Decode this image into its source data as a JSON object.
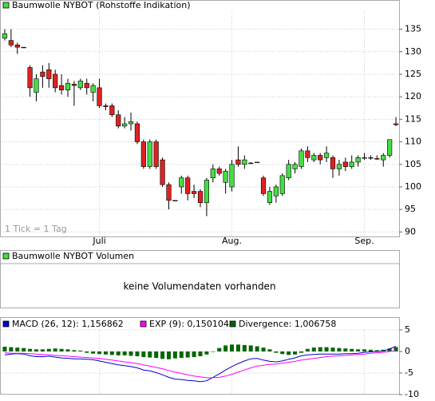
{
  "chart_data": [
    {
      "type": "candlestick",
      "title": "Baumwolle NYBOT (Rohstoffe Indikation)",
      "annotation": "1 Tick = 1 Tag",
      "legend_color": "#44dd44",
      "up_color": "#44dd44",
      "down_color": "#dd2222",
      "categories": [
        null,
        null,
        null,
        null,
        null,
        null,
        null,
        null,
        null,
        null,
        null,
        null,
        null,
        null,
        null,
        "Juli",
        null,
        null,
        null,
        null,
        null,
        null,
        null,
        null,
        null,
        null,
        null,
        null,
        null,
        null,
        null,
        null,
        null,
        null,
        null,
        null,
        "Aug.",
        null,
        null,
        null,
        null,
        null,
        null,
        null,
        null,
        null,
        null,
        null,
        null,
        null,
        null,
        null,
        null,
        null,
        null,
        null,
        null,
        "Sep.",
        null,
        null,
        null,
        null,
        null
      ],
      "open": [
        133,
        132.5,
        131.5,
        131,
        126.5,
        121,
        125.5,
        126,
        125,
        122.5,
        121.5,
        122.8,
        122,
        123,
        121,
        122,
        118,
        118,
        116,
        113.5,
        114,
        114,
        110,
        104.5,
        110,
        106,
        100.5,
        97,
        100,
        102,
        99,
        99,
        96.5,
        102,
        104,
        101,
        100,
        106,
        105,
        105.3,
        105.5,
        102,
        96.5,
        98,
        98.5,
        102,
        104,
        104.5,
        108,
        106,
        107,
        106.5,
        106.5,
        104,
        105.5,
        104.5,
        105.5,
        106.5,
        106.5,
        106.3,
        106,
        107,
        114
      ],
      "high": [
        135,
        135,
        132,
        131,
        127,
        125,
        127,
        127.5,
        126,
        125,
        124,
        123.5,
        124,
        124,
        123,
        124,
        118.5,
        118.5,
        117,
        115.5,
        116.5,
        114.5,
        110.5,
        110.5,
        110.5,
        106.5,
        101,
        97,
        102.5,
        102.5,
        100.5,
        99.5,
        102,
        105,
        104.5,
        104,
        106,
        109,
        107,
        105.5,
        105.5,
        102.5,
        100,
        100.5,
        103,
        106,
        105.5,
        108.5,
        109,
        107.5,
        107.5,
        109,
        107,
        106,
        106.5,
        107,
        107,
        107.5,
        107,
        107,
        107.5,
        110.5,
        115.5
      ],
      "low": [
        132.5,
        131,
        129.5,
        130.9,
        120,
        119,
        122,
        122,
        121,
        120.5,
        120,
        118,
        121.5,
        120.5,
        119,
        117.5,
        117,
        115.5,
        113,
        113,
        112.5,
        109.5,
        104,
        104,
        104,
        100,
        95,
        96.9,
        98.5,
        97,
        97.5,
        95.5,
        93.5,
        101,
        102.5,
        98.5,
        99,
        104.5,
        104,
        105.2,
        105.5,
        98,
        96,
        96.5,
        98,
        101.5,
        103,
        104,
        105.5,
        105.5,
        105,
        105.5,
        102,
        102.5,
        103.5,
        104,
        104.5,
        106,
        106,
        106,
        104.5,
        106.5,
        113.5
      ],
      "close": [
        134,
        131.5,
        131,
        130.9,
        122,
        124,
        124.5,
        124,
        122,
        121.5,
        123,
        122.5,
        123.5,
        122,
        122.5,
        118,
        117.8,
        116,
        113.5,
        114,
        114.5,
        110,
        104.5,
        110,
        104.5,
        100.5,
        97,
        96.9,
        102,
        98.5,
        98.5,
        96.5,
        101.5,
        104,
        103,
        103.5,
        105,
        105,
        106,
        105.2,
        105.5,
        98.5,
        99,
        100,
        102.5,
        105,
        105,
        108,
        106.5,
        107,
        106,
        107.5,
        104,
        105,
        104.5,
        105.5,
        106.5,
        106.5,
        106.5,
        106.2,
        107,
        110.5,
        113.8
      ],
      "ylim": [
        89,
        139
      ],
      "yticks": [
        90,
        95,
        100,
        105,
        110,
        115,
        120,
        125,
        130,
        135
      ],
      "grid": true
    },
    {
      "type": "empty",
      "title": "Baumwolle NYBOT Volumen",
      "legend_color": "#44dd44",
      "message": "keine Volumendaten vorhanden"
    },
    {
      "type": "line",
      "ylim": [
        -10,
        5
      ],
      "yticks": [
        -10,
        -5,
        0,
        5
      ],
      "grid": true,
      "series": [
        {
          "name": "MACD (26, 12): 1,156862",
          "color": "#0000cc",
          "type": "line",
          "values": [
            -0.8,
            -0.6,
            -0.5,
            -0.6,
            -1.0,
            -1.2,
            -1.2,
            -1.1,
            -1.3,
            -1.5,
            -1.6,
            -1.7,
            -1.7,
            -1.8,
            -1.9,
            -2.2,
            -2.5,
            -2.8,
            -3.1,
            -3.3,
            -3.5,
            -3.8,
            -4.3,
            -4.5,
            -4.9,
            -5.4,
            -6.0,
            -6.4,
            -6.5,
            -6.7,
            -6.8,
            -7.0,
            -6.8,
            -6.0,
            -5.2,
            -4.3,
            -3.5,
            -2.8,
            -2.2,
            -1.7,
            -1.6,
            -2.0,
            -2.3,
            -2.4,
            -2.2,
            -1.8,
            -1.5,
            -1.0,
            -0.8,
            -0.7,
            -0.6,
            -0.6,
            -0.6,
            -0.6,
            -0.5,
            -0.5,
            -0.4,
            -0.2,
            -0.1,
            0.0,
            0.1,
            0.6,
            1.2
          ]
        },
        {
          "name": "EXP (9): 0,150104",
          "color": "#ff00ff",
          "type": "line",
          "values": [
            -0.3,
            -0.4,
            -0.4,
            -0.4,
            -0.5,
            -0.6,
            -0.7,
            -0.8,
            -0.9,
            -1.0,
            -1.1,
            -1.2,
            -1.3,
            -1.4,
            -1.5,
            -1.6,
            -1.8,
            -2.0,
            -2.2,
            -2.4,
            -2.6,
            -2.8,
            -3.1,
            -3.4,
            -3.7,
            -4.0,
            -4.4,
            -4.8,
            -5.1,
            -5.4,
            -5.7,
            -5.9,
            -6.1,
            -6.1,
            -6.0,
            -5.7,
            -5.3,
            -4.8,
            -4.3,
            -3.8,
            -3.4,
            -3.2,
            -3.0,
            -2.9,
            -2.7,
            -2.5,
            -2.3,
            -2.0,
            -1.8,
            -1.6,
            -1.4,
            -1.2,
            -1.1,
            -1.0,
            -0.9,
            -0.8,
            -0.7,
            -0.6,
            -0.4,
            -0.3,
            -0.2,
            0.0,
            0.2
          ]
        },
        {
          "name": "Divergence: 1,006758",
          "color": "#006600",
          "type": "bar",
          "values": [
            1.1,
            1.0,
            0.9,
            0.8,
            0.6,
            0.5,
            0.5,
            0.6,
            0.7,
            0.6,
            0.5,
            0.3,
            0.2,
            -0.3,
            -0.5,
            -0.6,
            -0.7,
            -0.8,
            -0.9,
            -0.9,
            -1.0,
            -1.1,
            -1.3,
            -1.4,
            -1.5,
            -1.7,
            -1.8,
            -1.6,
            -1.5,
            -1.4,
            -1.3,
            -1.1,
            -0.7,
            -0.1,
            0.8,
            1.4,
            1.6,
            1.6,
            1.5,
            1.4,
            1.2,
            0.9,
            0.5,
            -0.3,
            -0.6,
            -0.8,
            -0.7,
            -0.3,
            0.6,
            0.9,
            1.0,
            1.0,
            0.9,
            0.8,
            0.7,
            0.6,
            0.5,
            0.5,
            0.4,
            0.3,
            0.4,
            0.7,
            1.0
          ]
        }
      ]
    }
  ]
}
